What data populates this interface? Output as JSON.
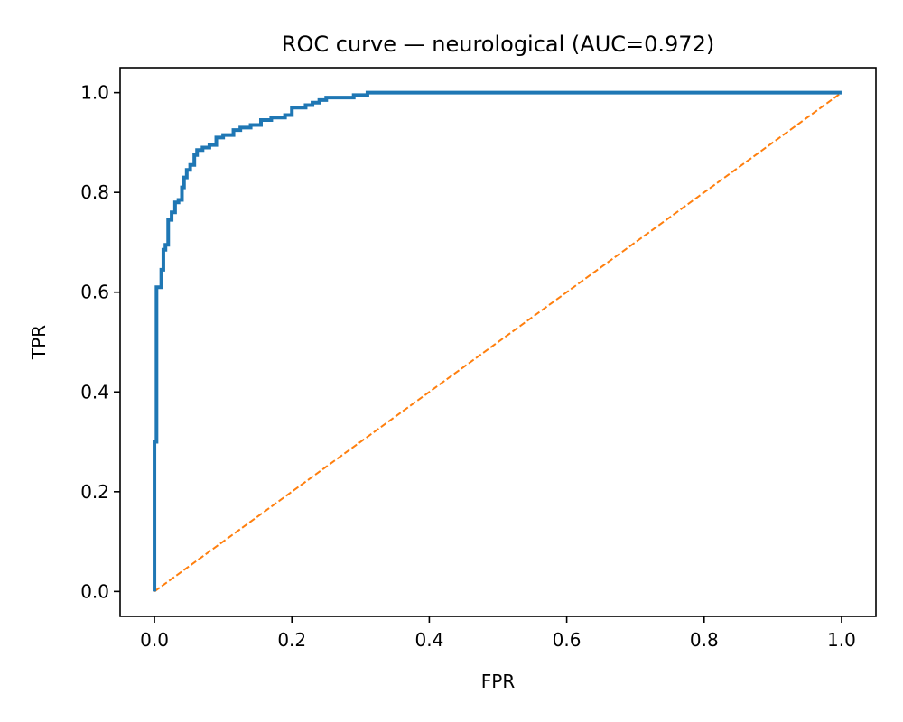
{
  "chart_data": {
    "type": "line",
    "title": "ROC curve — neurological (AUC=0.972)",
    "xlabel": "FPR",
    "ylabel": "TPR",
    "xlim": [
      -0.05,
      1.05
    ],
    "ylim": [
      -0.05,
      1.05
    ],
    "xticks": [
      0.0,
      0.2,
      0.4,
      0.6,
      0.8,
      1.0
    ],
    "yticks": [
      0.0,
      0.2,
      0.4,
      0.6,
      0.8,
      1.0
    ],
    "xtick_labels": [
      "0.0",
      "0.2",
      "0.4",
      "0.6",
      "0.8",
      "1.0"
    ],
    "ytick_labels": [
      "0.0",
      "0.2",
      "0.4",
      "0.6",
      "0.8",
      "1.0"
    ],
    "grid": false,
    "legend": "none",
    "series": [
      {
        "style": "solid",
        "color": "#1f77b4",
        "x": [
          0.0,
          0.0,
          0.003,
          0.003,
          0.005,
          0.005,
          0.01,
          0.01,
          0.013,
          0.013,
          0.016,
          0.016,
          0.02,
          0.02,
          0.025,
          0.025,
          0.03,
          0.03,
          0.035,
          0.035,
          0.04,
          0.04,
          0.043,
          0.043,
          0.047,
          0.047,
          0.052,
          0.052,
          0.058,
          0.058,
          0.062,
          0.062,
          0.07,
          0.07,
          0.08,
          0.08,
          0.09,
          0.09,
          0.1,
          0.1,
          0.115,
          0.115,
          0.125,
          0.125,
          0.14,
          0.14,
          0.155,
          0.155,
          0.17,
          0.17,
          0.19,
          0.19,
          0.2,
          0.2,
          0.22,
          0.22,
          0.23,
          0.23,
          0.24,
          0.24,
          0.25,
          0.25,
          0.29,
          0.29,
          0.31,
          0.31,
          0.32,
          0.32,
          1.0
        ],
        "y": [
          0.0,
          0.3,
          0.3,
          0.61,
          0.61,
          0.61,
          0.61,
          0.645,
          0.645,
          0.685,
          0.685,
          0.695,
          0.695,
          0.745,
          0.745,
          0.76,
          0.76,
          0.78,
          0.78,
          0.785,
          0.785,
          0.81,
          0.81,
          0.83,
          0.83,
          0.845,
          0.845,
          0.855,
          0.855,
          0.875,
          0.875,
          0.885,
          0.885,
          0.89,
          0.89,
          0.895,
          0.895,
          0.91,
          0.91,
          0.915,
          0.915,
          0.925,
          0.925,
          0.93,
          0.93,
          0.935,
          0.935,
          0.945,
          0.945,
          0.95,
          0.95,
          0.955,
          0.955,
          0.97,
          0.97,
          0.975,
          0.975,
          0.98,
          0.98,
          0.985,
          0.985,
          0.99,
          0.99,
          0.995,
          0.995,
          1.0,
          1.0,
          1.0,
          1.0
        ]
      },
      {
        "style": "dashed",
        "color": "#ff7f0e",
        "x": [
          0.0,
          1.0
        ],
        "y": [
          0.0,
          1.0
        ]
      }
    ]
  }
}
